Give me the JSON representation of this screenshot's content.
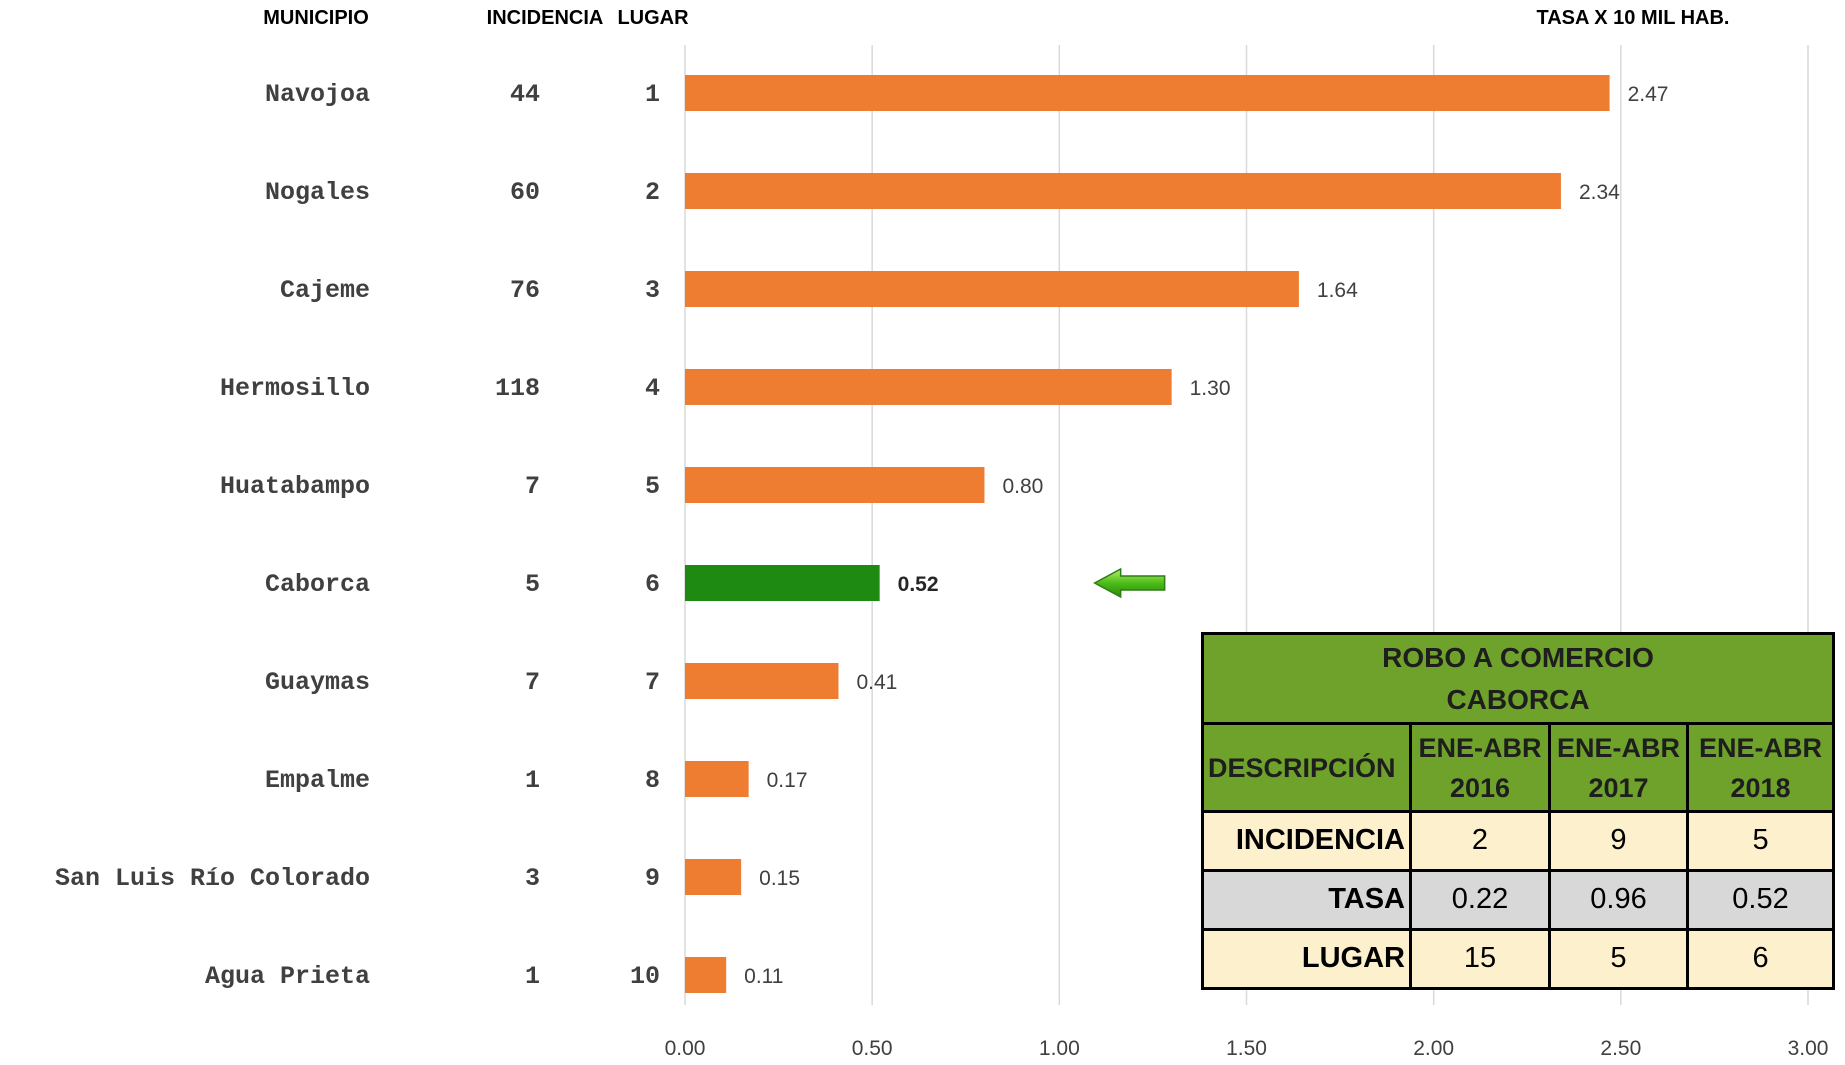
{
  "headers": {
    "municipio": "MUNICIPIO",
    "incidencia": "INCIDENCIA",
    "lugar": "LUGAR",
    "tasa": "TASA X 10 MIL HAB."
  },
  "colors": {
    "bar": "#ee7d31",
    "highlight_bar": "#1e8a12",
    "grid": "#d9d9d9",
    "table_header": "#6fa22b",
    "table_cream": "#fdf0cd",
    "table_grey": "#d8d8d8"
  },
  "chart_data": {
    "type": "bar",
    "orientation": "horizontal",
    "categories": [
      "Navojoa",
      "Nogales",
      "Cajeme",
      "Hermosillo",
      "Huatabampo",
      "Caborca",
      "Guaymas",
      "Empalme",
      "San Luis Río Colorado",
      "Agua Prieta"
    ],
    "values": [
      2.47,
      2.34,
      1.64,
      1.3,
      0.8,
      0.52,
      0.41,
      0.17,
      0.15,
      0.11
    ],
    "value_labels": [
      "2.47",
      "2.34",
      "1.64",
      "1.30",
      "0.80",
      "0.52",
      "0.41",
      "0.17",
      "0.15",
      "0.11"
    ],
    "incidencia": [
      "44",
      "60",
      "76",
      "118",
      "7",
      "5",
      "7",
      "1",
      "3",
      "1"
    ],
    "lugar": [
      "1",
      "2",
      "3",
      "4",
      "5",
      "6",
      "7",
      "8",
      "9",
      "10"
    ],
    "highlight": "Caborca",
    "highlight_marker": "left-arrow",
    "xlim": [
      0,
      3
    ],
    "x_ticks": [
      "0.00",
      "0.50",
      "1.00",
      "1.50",
      "2.00",
      "2.50",
      "3.00"
    ],
    "grid": "vertical",
    "title": "",
    "xlabel": "",
    "ylabel": ""
  },
  "table": {
    "title_line1": "ROBO A COMERCIO",
    "title_line2": "CABORCA",
    "desc_header": "DESCRIPCIÓN",
    "columns": [
      {
        "line1": "ENE-ABR",
        "line2": "2016"
      },
      {
        "line1": "ENE-ABR",
        "line2": "2017"
      },
      {
        "line1": "ENE-ABR",
        "line2": "2018"
      }
    ],
    "rows": [
      {
        "label": "INCIDENCIA",
        "values": [
          "2",
          "9",
          "5"
        ]
      },
      {
        "label": "TASA",
        "values": [
          "0.22",
          "0.96",
          "0.52"
        ]
      },
      {
        "label": "LUGAR",
        "values": [
          "15",
          "5",
          "6"
        ]
      }
    ]
  }
}
